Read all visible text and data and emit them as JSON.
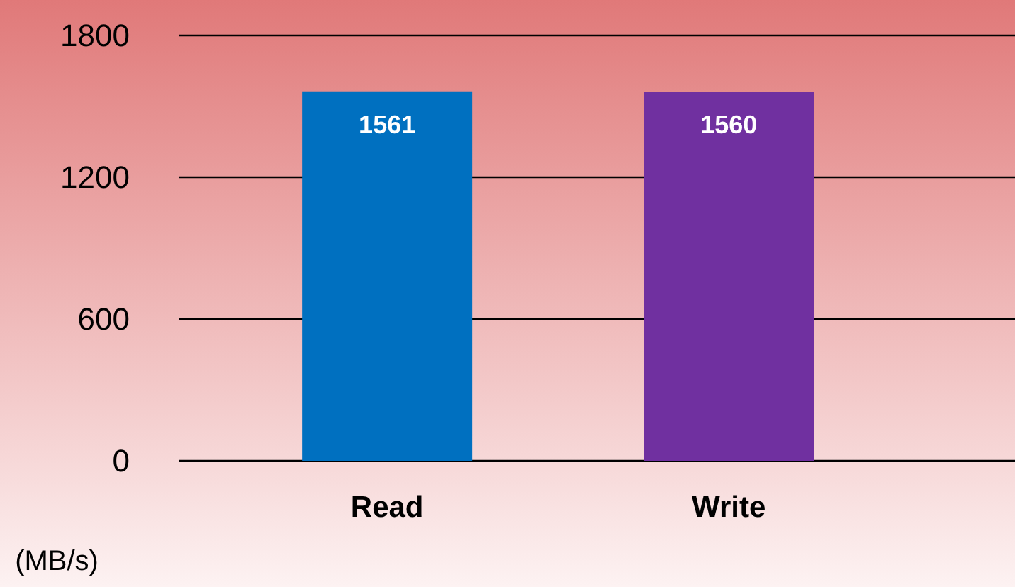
{
  "chart_data": {
    "type": "bar",
    "categories": [
      "Read",
      "Write"
    ],
    "values": [
      1561,
      1560
    ],
    "colors": [
      "#0070c0",
      "#7030a0"
    ],
    "ylim": [
      0,
      1800
    ],
    "yticks": [
      0,
      600,
      1200,
      1800
    ],
    "grid": "y",
    "data_labels": true,
    "ylabel": "(MB/s)"
  }
}
